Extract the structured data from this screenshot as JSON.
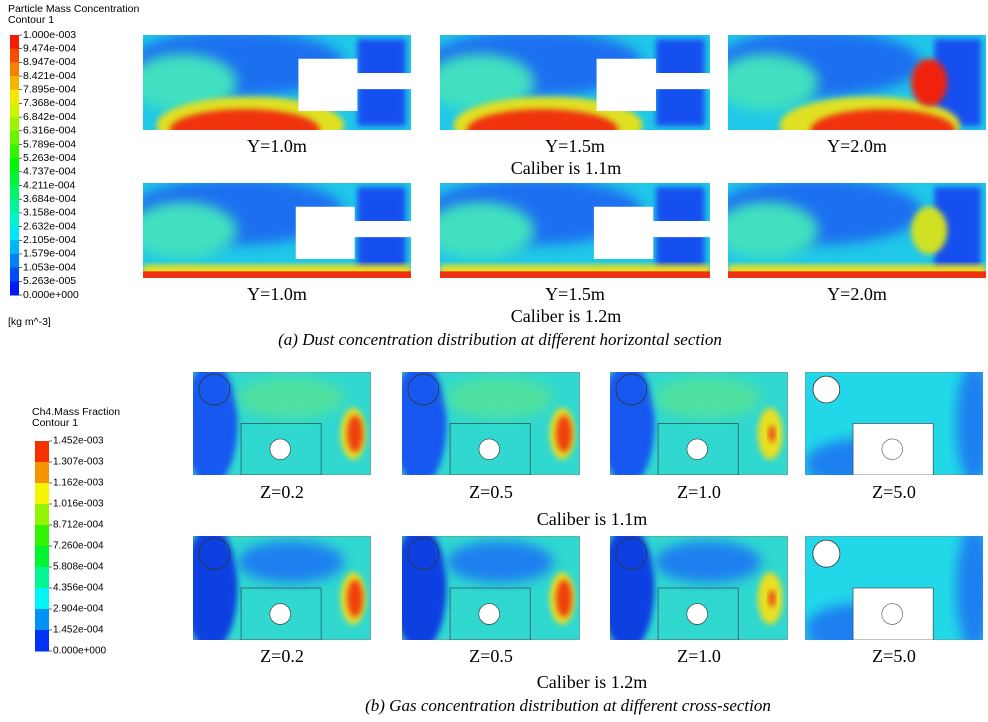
{
  "panel_a": {
    "legend": {
      "title": "Particle Mass Concentration",
      "subtitle": "Contour 1",
      "labels": [
        "1.000e-003",
        "9.474e-004",
        "8.947e-004",
        "8.421e-004",
        "7.895e-004",
        "7.368e-004",
        "6.842e-004",
        "6.316e-004",
        "5.789e-004",
        "5.263e-004",
        "4.737e-004",
        "4.211e-004",
        "3.684e-004",
        "3.158e-004",
        "2.632e-004",
        "2.105e-004",
        "1.579e-004",
        "1.053e-004",
        "5.263e-005",
        "0.000e+000"
      ],
      "unit": "[kg m^-3]"
    },
    "rows": [
      {
        "plots": [
          "Y=1.0m",
          "Y=1.5m",
          "Y=2.0m"
        ],
        "caption": "Caliber is 1.1m"
      },
      {
        "plots": [
          "Y=1.0m",
          "Y=1.5m",
          "Y=2.0m"
        ],
        "caption": "Caliber is 1.2m"
      }
    ],
    "caption": "(a) Dust concentration distribution at different horizontal section"
  },
  "panel_b": {
    "legend": {
      "title": "Ch4.Mass Fraction",
      "subtitle": "Contour 1",
      "labels": [
        "1.452e-003",
        "1.307e-003",
        "1.162e-003",
        "1.016e-003",
        "8.712e-004",
        "7.260e-004",
        "5.808e-004",
        "4.356e-004",
        "2.904e-004",
        "1.452e-004",
        "0.000e+000"
      ]
    },
    "rows": [
      {
        "plots": [
          "Z=0.2",
          "Z=0.5",
          "Z=1.0",
          "Z=5.0"
        ],
        "caption": "Caliber is 1.1m"
      },
      {
        "plots": [
          "Z=0.2",
          "Z=0.5",
          "Z=1.0",
          "Z=5.0"
        ],
        "caption": "Caliber is 1.2m"
      }
    ],
    "caption": "(b) Gas concentration distribution at different cross-section"
  }
}
